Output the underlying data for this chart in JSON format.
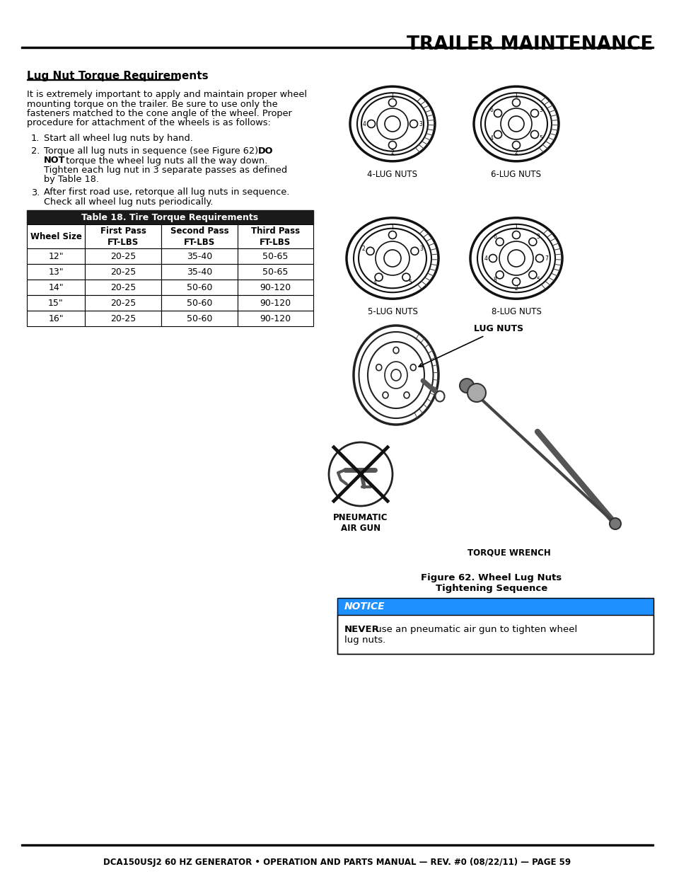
{
  "page_title": "TRAILER MAINTENANCE",
  "section_title": "Lug Nut Torque Requirements",
  "body_text_lines": [
    "It is extremely important to apply and maintain proper wheel",
    "mounting torque on the trailer. Be sure to use only the",
    "fasteners matched to the cone angle of the wheel. Proper",
    "procedure for attachment of the wheels is as follows:"
  ],
  "table_title": "Table 18. Tire Torque Requirements",
  "table_headers": [
    "Wheel Size",
    "First Pass\nFT-LBS",
    "Second Pass\nFT-LBS",
    "Third Pass\nFT-LBS"
  ],
  "table_rows": [
    [
      "12\"",
      "20-25",
      "35-40",
      "50-65"
    ],
    [
      "13\"",
      "20-25",
      "35-40",
      "50-65"
    ],
    [
      "14\"",
      "20-25",
      "50-60",
      "90-120"
    ],
    [
      "15\"",
      "20-25",
      "50-60",
      "90-120"
    ],
    [
      "16\"",
      "20-25",
      "50-60",
      "90-120"
    ]
  ],
  "figure_caption_line1": "Figure 62. Wheel Lug Nuts",
  "figure_caption_line2": "Tightening Sequence",
  "notice_title": "NOTICE",
  "notice_text_bold": "NEVER",
  "notice_text_rest": " use an pneumatic air gun to tighten wheel",
  "notice_text_line2": "lug nuts.",
  "footer_text": "DCA150USJ2 60 HZ GENERATOR • OPERATION AND PARTS MANUAL — REV. #0 (08/22/11) — PAGE 59",
  "table_header_bg": "#1a1a1a",
  "table_header_fg": "#ffffff",
  "notice_header_bg": "#1e90ff",
  "notice_header_fg": "#ffffff",
  "background_color": "#ffffff",
  "lug_configs": {
    "4_lug_angles_deg": [
      90,
      0,
      270,
      180
    ],
    "4_lug_nums": [
      "1",
      "3",
      "2",
      "4"
    ],
    "6_lug_angles_deg": [
      90,
      30,
      330,
      270,
      210,
      150
    ],
    "6_lug_nums": [
      "1",
      "3",
      "5",
      "2",
      "4",
      "6"
    ],
    "5_lug_angles_deg": [
      90,
      18,
      306,
      234,
      162
    ],
    "5_lug_nums": [
      "1",
      "3",
      "5",
      "4",
      "2"
    ],
    "8_lug_angles_deg": [
      90,
      45,
      0,
      315,
      270,
      225,
      180,
      135
    ],
    "8_lug_nums": [
      "1",
      "3",
      "7",
      "5",
      "2",
      "8",
      "4",
      "6"
    ]
  }
}
